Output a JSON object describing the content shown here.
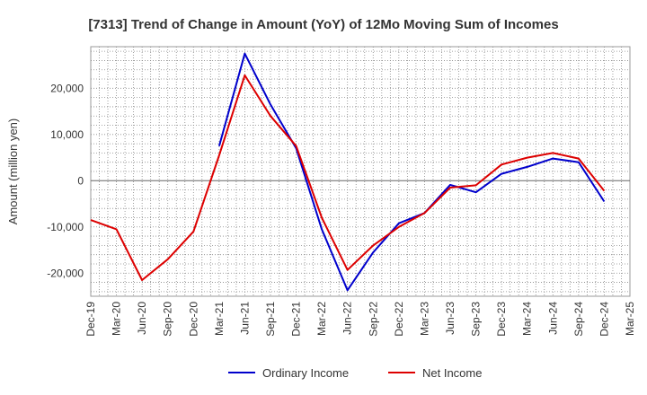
{
  "chart_data": {
    "type": "line",
    "title": "[7313]  Trend of Change in Amount (YoY) of 12Mo Moving Sum of Incomes",
    "xlabel": "",
    "ylabel": "Amount (million yen)",
    "ylim": [
      -25000,
      29000
    ],
    "yticks": [
      20000,
      10000,
      0,
      -10000,
      -20000
    ],
    "ytick_labels": [
      "20,000",
      "10,000",
      "0",
      "-10,000",
      "-20,000"
    ],
    "categories": [
      "Dec-19",
      "Mar-20",
      "Jun-20",
      "Sep-20",
      "Dec-20",
      "Mar-21",
      "Jun-21",
      "Sep-21",
      "Dec-21",
      "Mar-22",
      "Jun-22",
      "Sep-22",
      "Dec-22",
      "Mar-23",
      "Jun-23",
      "Sep-23",
      "Dec-23",
      "Mar-24",
      "Jun-24",
      "Sep-24",
      "Dec-24",
      "Mar-25"
    ],
    "grid": true,
    "legend_position": "bottom",
    "series": [
      {
        "name": "Ordinary Income",
        "color": "#0000cc",
        "values": [
          null,
          null,
          null,
          null,
          null,
          7500,
          27500,
          16500,
          7000,
          -10500,
          -23700,
          -15500,
          -9200,
          -7000,
          -900,
          -2500,
          1500,
          3000,
          4800,
          4000,
          -4500,
          null
        ]
      },
      {
        "name": "Net Income",
        "color": "#dd0000",
        "values": [
          -8500,
          -10500,
          -21500,
          -17000,
          -11000,
          5500,
          22800,
          14000,
          7500,
          -8000,
          -19300,
          -14000,
          -10000,
          -7000,
          -1500,
          -1000,
          3500,
          5000,
          6000,
          4800,
          -2200,
          null
        ]
      }
    ]
  }
}
